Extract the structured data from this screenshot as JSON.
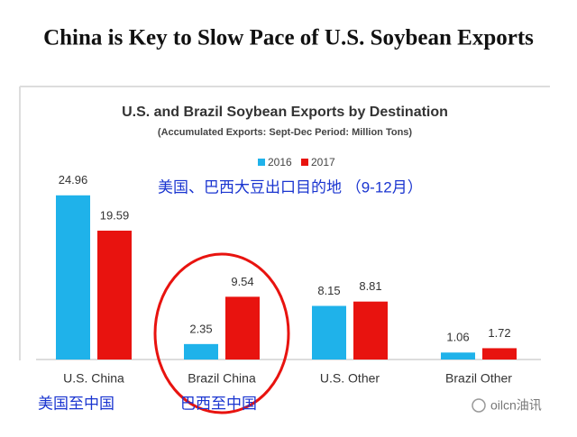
{
  "page_title": "China is Key to Slow Pace of U.S. Soybean Exports",
  "chart_data": {
    "type": "bar",
    "title": "U.S. and Brazil Soybean Exports by Destination",
    "subtitle": "(Accumulated Exports:  Sept-Dec Period: Million Tons)",
    "categories": [
      "U.S. China",
      "Brazil China",
      "U.S. Other",
      "Brazil Other"
    ],
    "series": [
      {
        "name": "2016",
        "color": "#1fb2ea",
        "values": [
          24.96,
          2.35,
          8.15,
          1.06
        ]
      },
      {
        "name": "2017",
        "color": "#e8130f",
        "values": [
          19.59,
          9.54,
          8.81,
          1.72
        ]
      }
    ],
    "annotation": "美国、巴西大豆出口目的地 （9-12月）",
    "category_notes": [
      "美国至中国",
      "巴西至中国"
    ]
  },
  "watermark": "oilcn油讯"
}
